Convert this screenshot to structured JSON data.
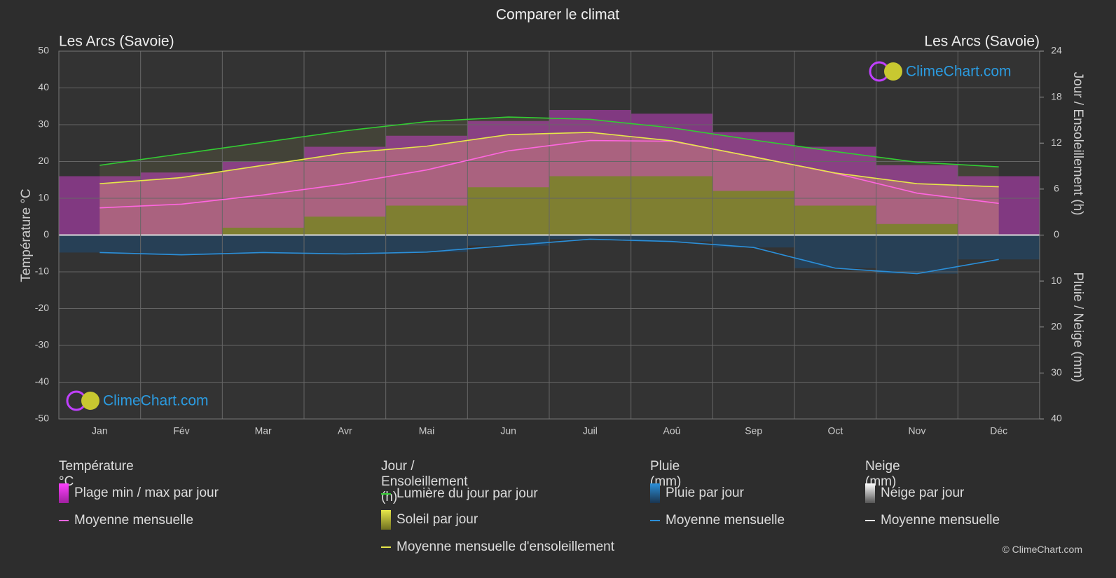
{
  "title": "Comparer le climat",
  "location_left": "Les Arcs (Savoie)",
  "location_right": "Les Arcs (Savoie)",
  "logo": "ClimeChart.com",
  "copyright": "© ClimeChart.com",
  "chart_data": {
    "type": "climate",
    "y_label": "Température °C",
    "y2_label": "Jour / Ensoleillement (h)",
    "y3_label": "Pluie / Neige (mm)",
    "categories": [
      "Jan",
      "Fév",
      "Mar",
      "Avr",
      "Mai",
      "Jun",
      "Juil",
      "Aoû",
      "Sep",
      "Oct",
      "Nov",
      "Déc"
    ],
    "ylim": [
      -50,
      50
    ],
    "yticks": [
      -50,
      -40,
      -30,
      -20,
      -10,
      0,
      10,
      20,
      30,
      40,
      50
    ],
    "y2lim": [
      0,
      24
    ],
    "y2ticks": [
      0,
      6,
      12,
      18,
      24
    ],
    "y3lim": [
      0,
      40
    ],
    "y3ticks": [
      10,
      20,
      30,
      40
    ],
    "grid": true,
    "series": [
      {
        "name": "Plage min / max par jour",
        "color": "#e040e0",
        "axis": "y",
        "min": [
          0,
          0,
          2,
          5,
          8,
          13,
          16,
          16,
          12,
          8,
          3,
          0
        ],
        "max": [
          16,
          17,
          20,
          24,
          27,
          31,
          34,
          33,
          28,
          24,
          19,
          16
        ]
      },
      {
        "name": "Moyenne mensuelle",
        "color": "#ff66e0",
        "axis": "y",
        "values": [
          7.4,
          8.4,
          10.9,
          13.9,
          17.7,
          22.9,
          25.7,
          25.5,
          21.3,
          16.8,
          11.4,
          8.6
        ]
      },
      {
        "name": "Lumière du jour par jour",
        "color": "#33cc33",
        "axis": "y2",
        "values": [
          9.1,
          10.6,
          12.1,
          13.6,
          14.8,
          15.4,
          15.1,
          14.0,
          12.4,
          10.9,
          9.5,
          8.9
        ]
      },
      {
        "name": "Moyenne mensuelle d'ensoleillement",
        "color": "#e6e64a",
        "axis": "y2",
        "values": [
          6.7,
          7.5,
          9.1,
          10.7,
          11.6,
          13.1,
          13.4,
          12.3,
          10.2,
          8.1,
          6.7,
          6.3
        ]
      },
      {
        "name": "Moyenne mensuelle",
        "color": "#2b8fd9",
        "axis": "y3",
        "values": [
          3.8,
          4.3,
          3.8,
          4.1,
          3.7,
          2.3,
          0.9,
          1.4,
          2.7,
          7.2,
          8.4,
          5.3
        ]
      }
    ]
  },
  "legend": {
    "temp_title": "Température °C",
    "sun_title": "Jour / Ensoleillement (h)",
    "rain_title": "Pluie (mm)",
    "snow_title": "Neige (mm)",
    "sun_daily": "Soleil par jour",
    "rain_daily": "Pluie par jour",
    "snow_daily": "Neige par jour",
    "snow_mean": "Moyenne mensuelle"
  }
}
